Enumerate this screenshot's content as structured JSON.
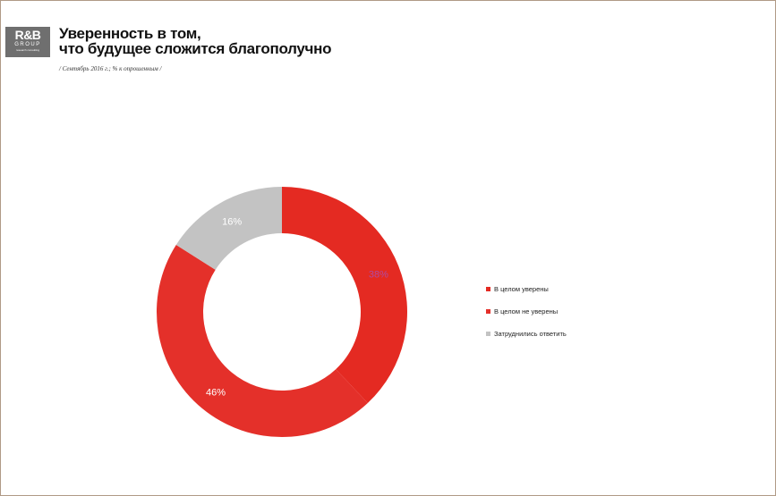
{
  "header": {
    "logo_main": "R&B",
    "logo_sub": "GROUP",
    "logo_tiny": "research consulting",
    "title_line1": "Уверенность в том,",
    "title_line2": "что будущее сложится благополучно",
    "subtitle": "/ Сентябрь 2016 г.; % к опрошенным /"
  },
  "chart_data": {
    "type": "pie",
    "donut": true,
    "categories": [
      "В целом уверены",
      "В целом не уверены",
      "Затруднились ответить"
    ],
    "values": [
      38,
      46,
      16
    ],
    "labels": [
      "38%",
      "46%",
      "16%"
    ],
    "colors": [
      "#e42a22",
      "#e4302a",
      "#c3c3c3"
    ],
    "label_colors": [
      "#b04aa0",
      "#ffffff",
      "#ffffff"
    ],
    "legend_position": "right"
  }
}
